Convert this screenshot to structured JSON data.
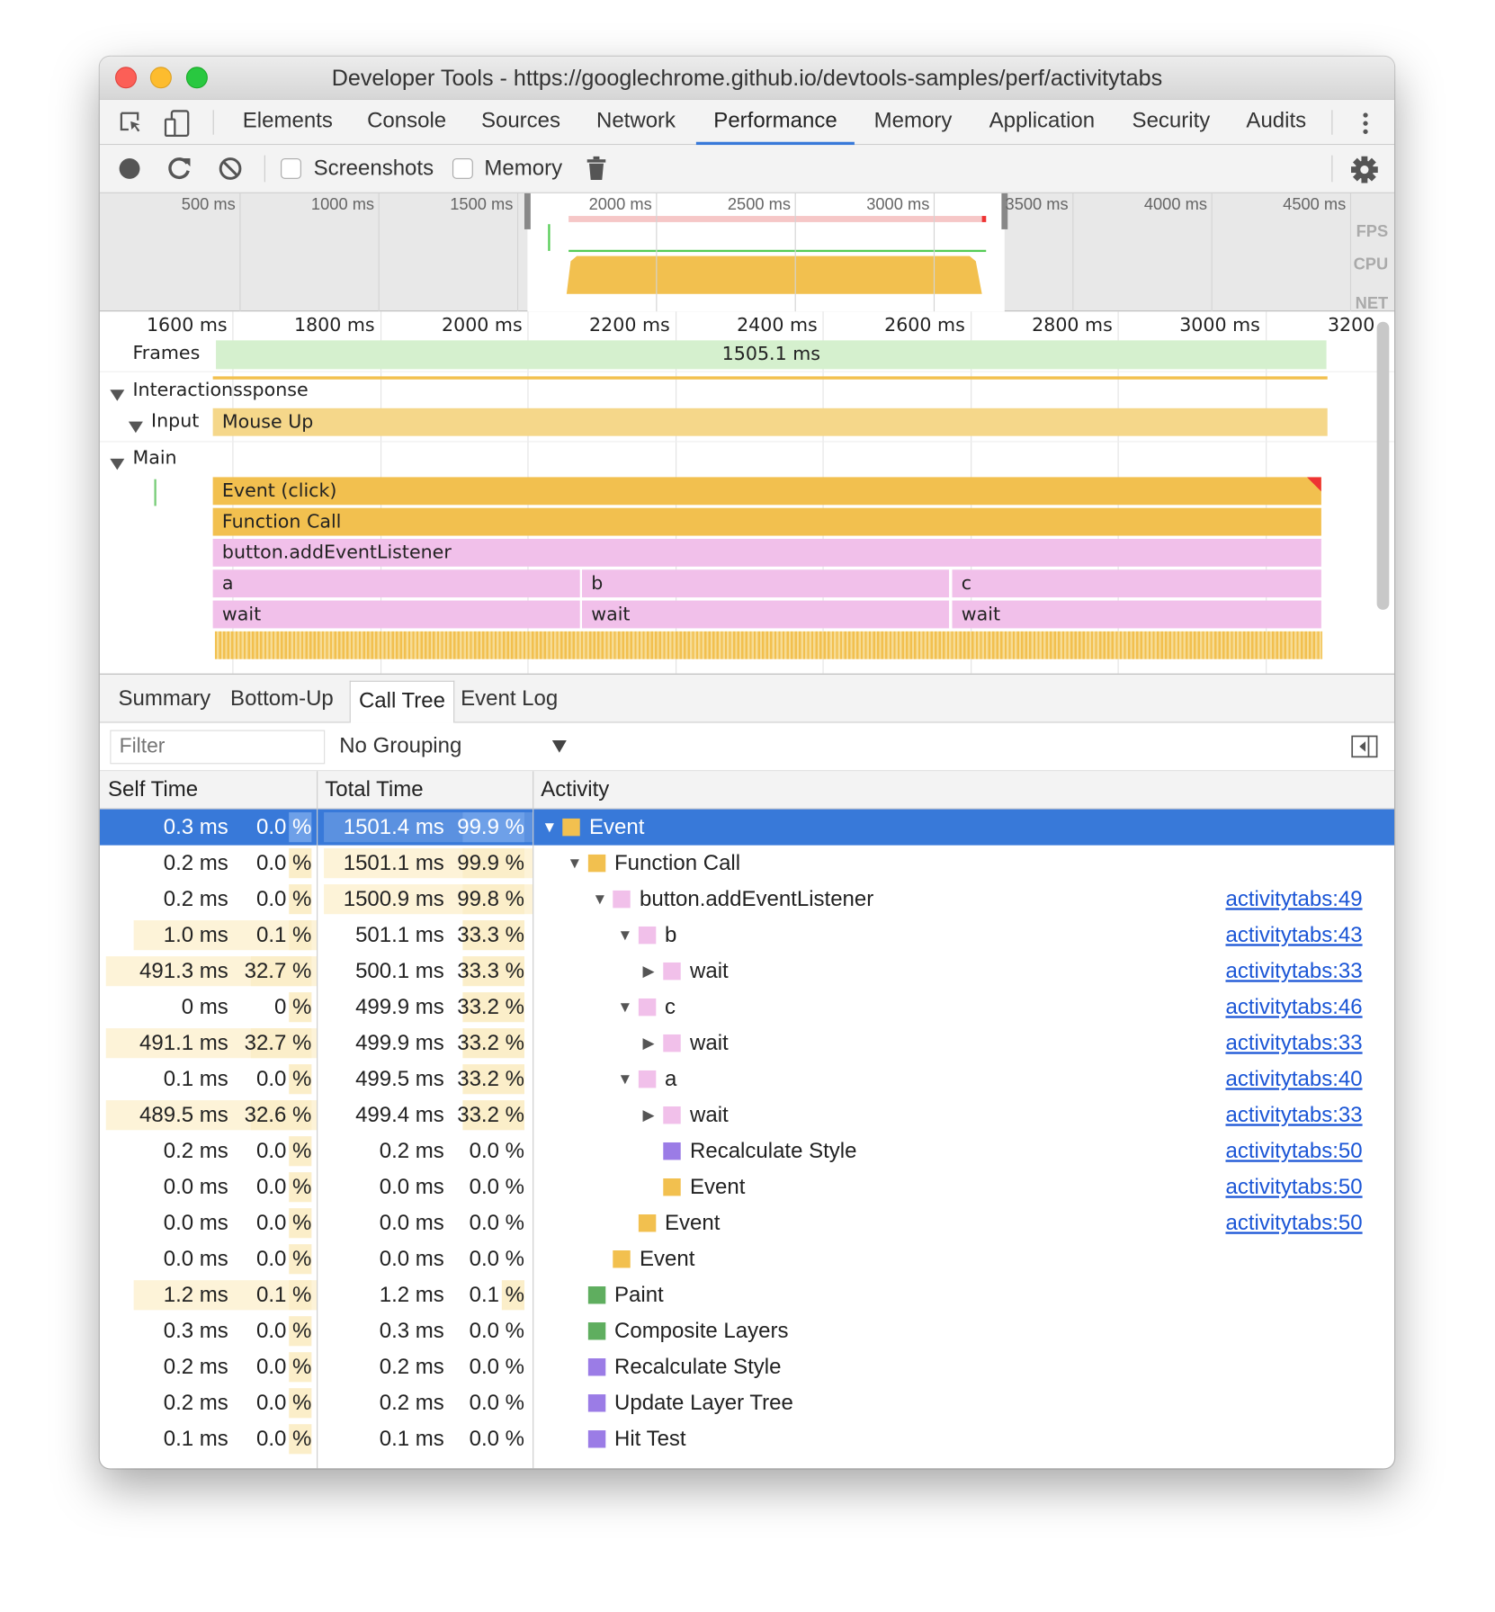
{
  "window": {
    "title": "Developer Tools - https://googlechrome.github.io/devtools-samples/perf/activitytabs"
  },
  "tabs": [
    {
      "label": "Elements",
      "x": 139
    },
    {
      "label": "Console",
      "x": 260
    },
    {
      "label": "Sources",
      "x": 371
    },
    {
      "label": "Network",
      "x": 483
    },
    {
      "label": "Performance",
      "x": 597,
      "active": true
    },
    {
      "label": "Memory",
      "x": 753
    },
    {
      "label": "Application",
      "x": 865
    },
    {
      "label": "Security",
      "x": 1004
    },
    {
      "label": "Audits",
      "x": 1115
    }
  ],
  "toolbar": {
    "screenshots_label": "Screenshots",
    "screenshots_checked": false,
    "memory_label": "Memory",
    "memory_checked": false
  },
  "overview": {
    "ticks": [
      "500 ms",
      "1000 ms",
      "1500 ms",
      "2000 ms",
      "2500 ms",
      "3000 ms",
      "3500 ms",
      "4000 ms",
      "4500 ms"
    ],
    "tick_values": [
      500,
      1000,
      1500,
      2000,
      2500,
      3000,
      3500,
      4000,
      4500
    ],
    "selection_ms": [
      1550,
      3270
    ],
    "side_labels": [
      "FPS",
      "CPU",
      "NET"
    ]
  },
  "flame": {
    "ruler": [
      "1600 ms",
      "1800 ms",
      "2000 ms",
      "2200 ms",
      "2400 ms",
      "2600 ms",
      "2800 ms",
      "3000 ms",
      "3200"
    ],
    "ruler_values": [
      1600,
      1800,
      2000,
      2200,
      2400,
      2600,
      2800,
      3000,
      3200
    ],
    "frames_label": "Frames",
    "frame_duration": "1505.1 ms",
    "interactions_label": "Interactions",
    "interactions_suffix": "sponse",
    "input_label": "Input",
    "input_event": "Mouse Up",
    "main_label": "Main",
    "bars": {
      "event_click": "Event (click)",
      "function_call": "Function Call",
      "listener": "button.addEventListener",
      "a": "a",
      "b": "b",
      "c": "c",
      "wait_a": "wait",
      "wait_b": "wait",
      "wait_c": "wait"
    }
  },
  "bottom_tabs": [
    {
      "label": "Summary"
    },
    {
      "label": "Bottom-Up"
    },
    {
      "label": "Call Tree",
      "active": true
    },
    {
      "label": "Event Log"
    }
  ],
  "filter": {
    "placeholder": "Filter",
    "grouping": "No Grouping"
  },
  "columns": {
    "self": "Self Time",
    "total": "Total Time",
    "activity": "Activity"
  },
  "colors": {
    "scripting": "#f2c04f",
    "js": "#f1c0ea",
    "rendering": "#9b7ce6",
    "painting": "#5fae5f",
    "selection": "#3879d9"
  },
  "rows": [
    {
      "self": "0.3 ms",
      "self_pct": "0.0 %",
      "self_v": 0.0,
      "total": "1501.4 ms",
      "total_pct": "99.9 %",
      "total_v": 99.9,
      "name": "Event",
      "depth": 0,
      "expanded": true,
      "color": "scripting",
      "link": "",
      "selected": true
    },
    {
      "self": "0.2 ms",
      "self_pct": "0.0 %",
      "self_v": 0.0,
      "total": "1501.1 ms",
      "total_pct": "99.9 %",
      "total_v": 99.9,
      "name": "Function Call",
      "depth": 1,
      "expanded": true,
      "color": "scripting",
      "link": ""
    },
    {
      "self": "0.2 ms",
      "self_pct": "0.0 %",
      "self_v": 0.0,
      "total": "1500.9 ms",
      "total_pct": "99.8 %",
      "total_v": 99.8,
      "name": "button.addEventListener",
      "depth": 2,
      "expanded": true,
      "color": "js",
      "link": "activitytabs:49"
    },
    {
      "self": "1.0 ms",
      "self_pct": "0.1 %",
      "self_v": 0.1,
      "total": "501.1 ms",
      "total_pct": "33.3 %",
      "total_v": 33.3,
      "name": "b",
      "depth": 3,
      "expanded": true,
      "color": "js",
      "link": "activitytabs:43"
    },
    {
      "self": "491.3 ms",
      "self_pct": "32.7 %",
      "self_v": 32.7,
      "total": "500.1 ms",
      "total_pct": "33.3 %",
      "total_v": 33.3,
      "name": "wait",
      "depth": 4,
      "expanded": false,
      "color": "js",
      "link": "activitytabs:33"
    },
    {
      "self": "0 ms",
      "self_pct": "0 %",
      "self_v": 0,
      "total": "499.9 ms",
      "total_pct": "33.2 %",
      "total_v": 33.2,
      "name": "c",
      "depth": 3,
      "expanded": true,
      "color": "js",
      "link": "activitytabs:46"
    },
    {
      "self": "491.1 ms",
      "self_pct": "32.7 %",
      "self_v": 32.7,
      "total": "499.9 ms",
      "total_pct": "33.2 %",
      "total_v": 33.2,
      "name": "wait",
      "depth": 4,
      "expanded": false,
      "color": "js",
      "link": "activitytabs:33"
    },
    {
      "self": "0.1 ms",
      "self_pct": "0.0 %",
      "self_v": 0.0,
      "total": "499.5 ms",
      "total_pct": "33.2 %",
      "total_v": 33.2,
      "name": "a",
      "depth": 3,
      "expanded": true,
      "color": "js",
      "link": "activitytabs:40"
    },
    {
      "self": "489.5 ms",
      "self_pct": "32.6 %",
      "self_v": 32.6,
      "total": "499.4 ms",
      "total_pct": "33.2 %",
      "total_v": 33.2,
      "name": "wait",
      "depth": 4,
      "expanded": false,
      "color": "js",
      "link": "activitytabs:33"
    },
    {
      "self": "0.2 ms",
      "self_pct": "0.0 %",
      "self_v": 0.0,
      "total": "0.2 ms",
      "total_pct": "0.0 %",
      "total_v": 0.0,
      "name": "Recalculate Style",
      "depth": 4,
      "color": "rendering",
      "link": "activitytabs:50"
    },
    {
      "self": "0.0 ms",
      "self_pct": "0.0 %",
      "self_v": 0.0,
      "total": "0.0 ms",
      "total_pct": "0.0 %",
      "total_v": 0.0,
      "name": "Event",
      "depth": 4,
      "color": "scripting",
      "link": "activitytabs:50"
    },
    {
      "self": "0.0 ms",
      "self_pct": "0.0 %",
      "self_v": 0.0,
      "total": "0.0 ms",
      "total_pct": "0.0 %",
      "total_v": 0.0,
      "name": "Event",
      "depth": 3,
      "color": "scripting",
      "link": "activitytabs:50"
    },
    {
      "self": "0.0 ms",
      "self_pct": "0.0 %",
      "self_v": 0.0,
      "total": "0.0 ms",
      "total_pct": "0.0 %",
      "total_v": 0.0,
      "name": "Event",
      "depth": 2,
      "color": "scripting",
      "link": ""
    },
    {
      "self": "1.2 ms",
      "self_pct": "0.1 %",
      "self_v": 0.1,
      "total": "1.2 ms",
      "total_pct": "0.1 %",
      "total_v": 0.1,
      "name": "Paint",
      "depth": 1,
      "color": "painting",
      "link": ""
    },
    {
      "self": "0.3 ms",
      "self_pct": "0.0 %",
      "self_v": 0.0,
      "total": "0.3 ms",
      "total_pct": "0.0 %",
      "total_v": 0.0,
      "name": "Composite Layers",
      "depth": 1,
      "color": "painting",
      "link": ""
    },
    {
      "self": "0.2 ms",
      "self_pct": "0.0 %",
      "self_v": 0.0,
      "total": "0.2 ms",
      "total_pct": "0.0 %",
      "total_v": 0.0,
      "name": "Recalculate Style",
      "depth": 1,
      "color": "rendering",
      "link": ""
    },
    {
      "self": "0.2 ms",
      "self_pct": "0.0 %",
      "self_v": 0.0,
      "total": "0.2 ms",
      "total_pct": "0.0 %",
      "total_v": 0.0,
      "name": "Update Layer Tree",
      "depth": 1,
      "color": "rendering",
      "link": ""
    },
    {
      "self": "0.1 ms",
      "self_pct": "0.0 %",
      "self_v": 0.0,
      "total": "0.1 ms",
      "total_pct": "0.0 %",
      "total_v": 0.0,
      "name": "Hit Test",
      "depth": 1,
      "color": "rendering",
      "link": ""
    }
  ]
}
